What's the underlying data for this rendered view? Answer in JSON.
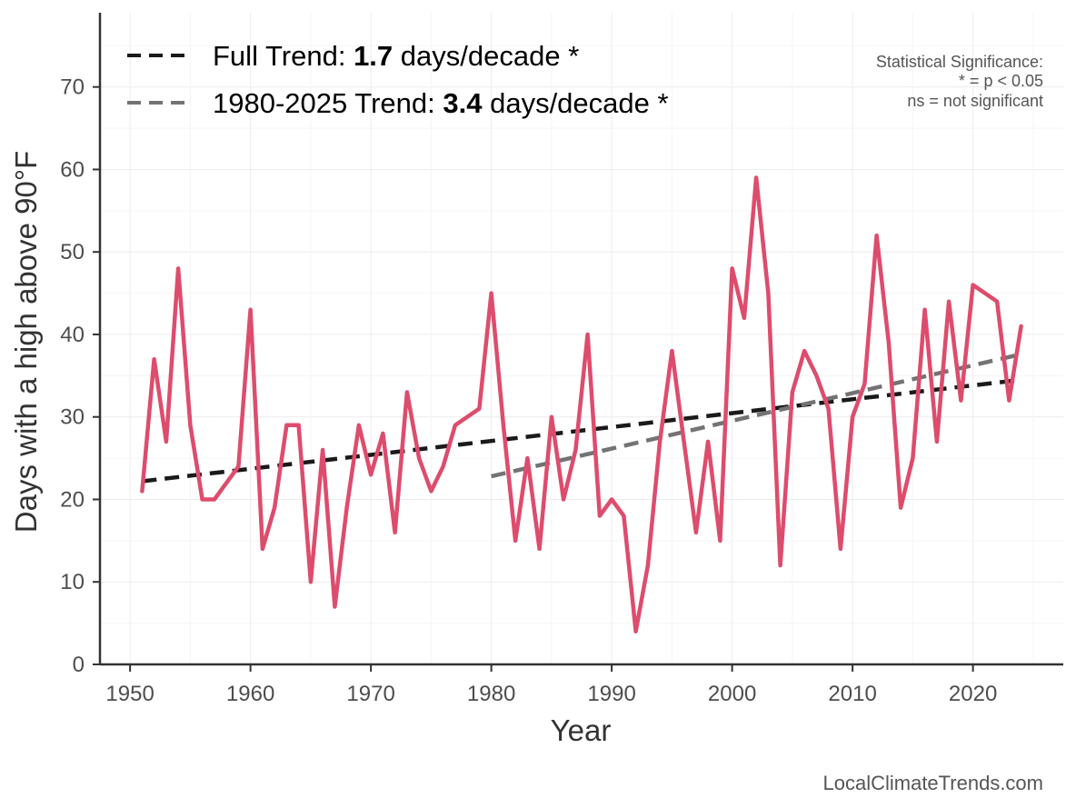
{
  "chart_data": {
    "type": "line",
    "title": "",
    "xlabel": "Year",
    "ylabel": "Days with a high above 90°F",
    "xlim": [
      1947.5,
      2027.5
    ],
    "ylim": [
      0,
      79
    ],
    "xticks": [
      1950,
      1960,
      1970,
      1980,
      1990,
      2000,
      2010,
      2020
    ],
    "yticks": [
      0,
      10,
      20,
      30,
      40,
      50,
      60,
      70
    ],
    "grid": true,
    "series": [
      {
        "name": "Days above 90°F",
        "color": "#de4c6c",
        "x": [
          1951,
          1952,
          1953,
          1954,
          1955,
          1956,
          1957,
          1959,
          1960,
          1961,
          1962,
          1963,
          1964,
          1965,
          1966,
          1967,
          1968,
          1969,
          1970,
          1971,
          1972,
          1973,
          1974,
          1975,
          1976,
          1977,
          1979,
          1980,
          1981,
          1982,
          1983,
          1984,
          1985,
          1986,
          1987,
          1988,
          1989,
          1990,
          1991,
          1992,
          1993,
          1994,
          1995,
          1996,
          1997,
          1998,
          1999,
          2000,
          2001,
          2002,
          2003,
          2004,
          2005,
          2006,
          2007,
          2008,
          2009,
          2010,
          2011,
          2012,
          2013,
          2014,
          2015,
          2016,
          2017,
          2018,
          2019,
          2020,
          2022,
          2023,
          2024
        ],
        "values": [
          21,
          37,
          27,
          48,
          29,
          20,
          20,
          24,
          43,
          14,
          19,
          29,
          29,
          10,
          26,
          7,
          19,
          29,
          23,
          28,
          16,
          33,
          25,
          21,
          24,
          29,
          31,
          45,
          29,
          15,
          25,
          14,
          30,
          20,
          26,
          40,
          18,
          20,
          18,
          4,
          12,
          27,
          38,
          27,
          16,
          27,
          15,
          48,
          42,
          59,
          45,
          12,
          33,
          38,
          35,
          31,
          14,
          30,
          34,
          52,
          39,
          19,
          25,
          43,
          27,
          44,
          32,
          46,
          44,
          32,
          41
        ]
      }
    ],
    "trends": [
      {
        "name": "Full Trend",
        "color": "#1a1a1a",
        "x": [
          1951,
          2024
        ],
        "values": [
          22.2,
          34.5
        ]
      },
      {
        "name": "1980-2025 Trend",
        "color": "#737373",
        "x": [
          1980,
          2024
        ],
        "values": [
          22.8,
          37.6
        ]
      }
    ]
  },
  "legend": {
    "full": {
      "prefix": "Full Trend: ",
      "value": "1.7",
      "suffix": " days/decade *"
    },
    "recent": {
      "prefix": "1980-2025 Trend: ",
      "value": "3.4",
      "suffix": " days/decade *"
    }
  },
  "significance": {
    "title": "Statistical Significance:",
    "line1": "* = p < 0.05",
    "line2": "ns = not significant"
  },
  "credit": "LocalClimateTrends.com"
}
